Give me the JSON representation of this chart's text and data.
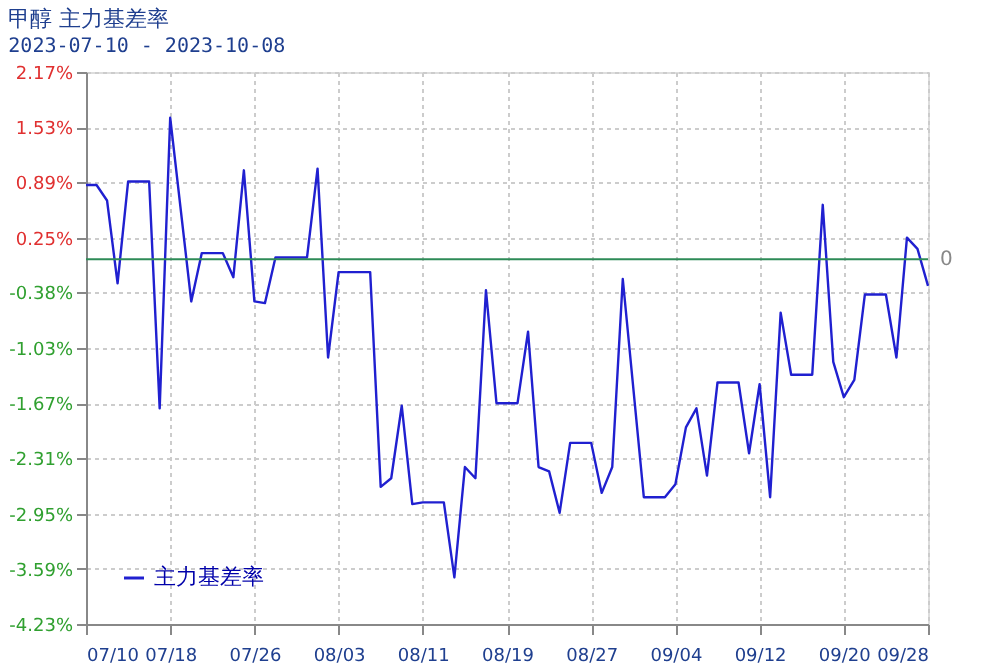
{
  "chart_data": {
    "type": "line",
    "title": "甲醇  主力基差率",
    "subtitle": "2023-07-10 - 2023-10-08",
    "x": [
      "2023-07-10",
      "2023-07-11",
      "2023-07-12",
      "2023-07-13",
      "2023-07-14",
      "2023-07-16",
      "2023-07-17",
      "2023-07-18",
      "2023-07-20",
      "2023-07-21",
      "2023-07-23",
      "2023-07-24",
      "2023-07-25",
      "2023-07-26",
      "2023-07-27",
      "2023-07-28",
      "2023-07-31",
      "2023-08-01",
      "2023-08-02",
      "2023-08-03",
      "2023-08-06",
      "2023-08-07",
      "2023-08-08",
      "2023-08-09",
      "2023-08-10",
      "2023-08-11",
      "2023-08-13",
      "2023-08-14",
      "2023-08-15",
      "2023-08-16",
      "2023-08-17",
      "2023-08-18",
      "2023-08-20",
      "2023-08-21",
      "2023-08-22",
      "2023-08-23",
      "2023-08-24",
      "2023-08-25",
      "2023-08-27",
      "2023-08-28",
      "2023-08-29",
      "2023-08-30",
      "2023-09-01",
      "2023-09-03",
      "2023-09-04",
      "2023-09-05",
      "2023-09-06",
      "2023-09-07",
      "2023-09-08",
      "2023-09-10",
      "2023-09-11",
      "2023-09-12",
      "2023-09-13",
      "2023-09-14",
      "2023-09-15",
      "2023-09-17",
      "2023-09-18",
      "2023-09-19",
      "2023-09-20",
      "2023-09-21",
      "2023-09-22",
      "2023-09-24",
      "2023-09-25",
      "2023-09-26",
      "2023-09-27",
      "2023-09-28"
    ],
    "series": [
      {
        "name": "主力基差率",
        "color": "#2020d0",
        "values": [
          0.86,
          0.86,
          0.68,
          -0.28,
          0.9,
          0.9,
          -1.73,
          1.64,
          -0.49,
          0.07,
          0.07,
          -0.21,
          1.03,
          -0.49,
          -0.51,
          0.02,
          0.02,
          1.05,
          -1.14,
          -0.15,
          -0.15,
          -2.64,
          -2.54,
          -1.7,
          -2.84,
          -2.82,
          -2.82,
          -3.69,
          -2.41,
          -2.54,
          -0.36,
          -1.67,
          -1.67,
          -0.84,
          -2.41,
          -2.46,
          -2.94,
          -2.13,
          -2.13,
          -2.71,
          -2.41,
          -0.23,
          -2.76,
          -2.76,
          -2.61,
          -1.95,
          -1.73,
          -2.51,
          -1.43,
          -1.43,
          -2.25,
          -1.45,
          -2.76,
          -0.62,
          -1.34,
          -1.34,
          0.63,
          -1.19,
          -1.6,
          -1.4,
          -0.41,
          -0.41,
          -1.14,
          0.25,
          0.12,
          -0.31
        ]
      }
    ],
    "xlim": [
      "2023-07-10",
      "2023-09-28"
    ],
    "xticks": [
      {
        "value": "2023-07-10",
        "label": "07/10"
      },
      {
        "value": "2023-07-18",
        "label": "07/18"
      },
      {
        "value": "2023-07-26",
        "label": "07/26"
      },
      {
        "value": "2023-08-03",
        "label": "08/03"
      },
      {
        "value": "2023-08-11",
        "label": "08/11"
      },
      {
        "value": "2023-08-19",
        "label": "08/19"
      },
      {
        "value": "2023-08-27",
        "label": "08/27"
      },
      {
        "value": "2023-09-04",
        "label": "09/04"
      },
      {
        "value": "2023-09-12",
        "label": "09/12"
      },
      {
        "value": "2023-09-20",
        "label": "09/20"
      },
      {
        "value": "2023-09-28",
        "label": "09/28"
      }
    ],
    "ylim": [
      -4.23,
      2.17
    ],
    "yticks": [
      {
        "value": 2.17,
        "label": "2.17%"
      },
      {
        "value": 1.53,
        "label": "1.53%"
      },
      {
        "value": 0.89,
        "label": "0.89%"
      },
      {
        "value": 0.25,
        "label": "0.25%"
      },
      {
        "value": -0.38,
        "label": "-0.38%"
      },
      {
        "value": -1.03,
        "label": "-1.03%"
      },
      {
        "value": -1.67,
        "label": "-1.67%"
      },
      {
        "value": -2.31,
        "label": "-2.31%"
      },
      {
        "value": -2.95,
        "label": "-2.95%"
      },
      {
        "value": -3.59,
        "label": "-3.59%"
      },
      {
        "value": -4.23,
        "label": "-4.23%"
      }
    ],
    "ref_lines": [
      {
        "axis": "y",
        "value": 0,
        "label": "0",
        "color": "#2e8b57"
      }
    ],
    "grid": true,
    "legend": "bottom left",
    "marker": "none",
    "line_style": "solid"
  }
}
